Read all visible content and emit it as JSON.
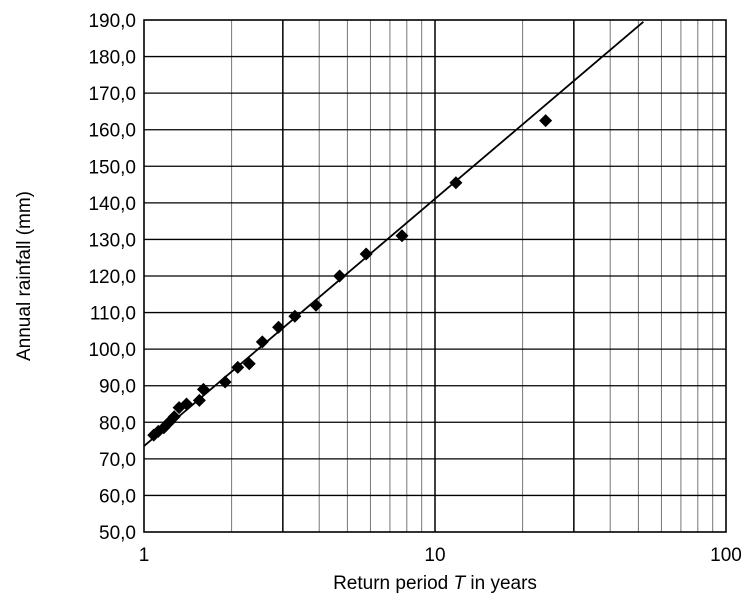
{
  "chart_data": {
    "type": "scatter",
    "title": "",
    "xlabel": "Return period T in years",
    "xlabel_parts": {
      "before": "Return period ",
      "italic": "T",
      "after": " in years"
    },
    "ylabel": "Annual rainfall (mm)",
    "x_scale": "log",
    "xlim": [
      1,
      100
    ],
    "ylim": [
      50,
      190
    ],
    "grid": true,
    "legend": "none",
    "x_ticks": [
      1,
      10,
      100
    ],
    "x_tick_labels": [
      "1",
      "10",
      "100"
    ],
    "y_ticks": [
      50,
      60,
      70,
      80,
      90,
      100,
      110,
      120,
      130,
      140,
      150,
      160,
      170,
      180,
      190
    ],
    "y_tick_labels": [
      "50,0",
      "60,0",
      "70,0",
      "80,0",
      "90,0",
      "100,0",
      "110,0",
      "120,0",
      "130,0",
      "140,0",
      "150,0",
      "160,0",
      "170,0",
      "180,0",
      "190,0"
    ],
    "series": [
      {
        "type": "scatter",
        "marker": "diamond",
        "color": "#000000",
        "points": [
          {
            "x": 1.08,
            "y": 76.5
          },
          {
            "x": 1.12,
            "y": 77.5
          },
          {
            "x": 1.17,
            "y": 78.5
          },
          {
            "x": 1.22,
            "y": 80.0
          },
          {
            "x": 1.27,
            "y": 81.5
          },
          {
            "x": 1.32,
            "y": 84.0
          },
          {
            "x": 1.4,
            "y": 85.0
          },
          {
            "x": 1.55,
            "y": 86.0
          },
          {
            "x": 1.6,
            "y": 89.0
          },
          {
            "x": 1.9,
            "y": 91.0
          },
          {
            "x": 2.1,
            "y": 95.0
          },
          {
            "x": 2.3,
            "y": 96.0
          },
          {
            "x": 2.55,
            "y": 102.0
          },
          {
            "x": 2.9,
            "y": 106.0
          },
          {
            "x": 3.3,
            "y": 109.0
          },
          {
            "x": 3.9,
            "y": 112.0
          },
          {
            "x": 4.7,
            "y": 120.0
          },
          {
            "x": 5.8,
            "y": 126.0
          },
          {
            "x": 7.7,
            "y": 131.0
          },
          {
            "x": 11.8,
            "y": 145.5
          },
          {
            "x": 24.0,
            "y": 162.5
          }
        ]
      },
      {
        "type": "line",
        "color": "#000000",
        "x": [
          1.0,
          52.0
        ],
        "y": [
          73.5,
          189.5
        ]
      }
    ]
  }
}
